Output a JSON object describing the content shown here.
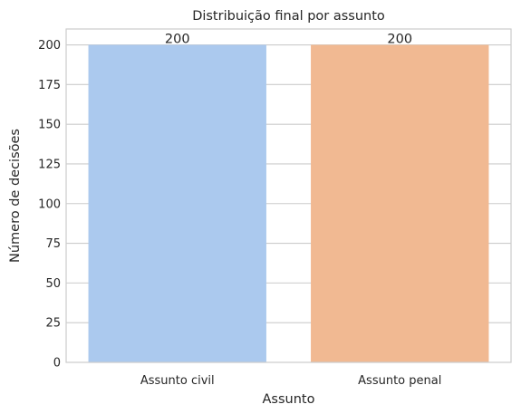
{
  "chart_data": {
    "type": "bar",
    "title": "Distribuição final por assunto",
    "xlabel": "Assunto",
    "ylabel": "Número de decisões",
    "categories": [
      "Assunto civil",
      "Assunto penal"
    ],
    "values": [
      200,
      200
    ],
    "data_labels": [
      "200",
      "200"
    ],
    "colors": [
      "#abc9ee",
      "#f1b992"
    ],
    "ylim": [
      0,
      210
    ],
    "yticks": [
      0,
      25,
      50,
      75,
      100,
      125,
      150,
      175,
      200
    ],
    "grid": true,
    "legend": "none"
  }
}
